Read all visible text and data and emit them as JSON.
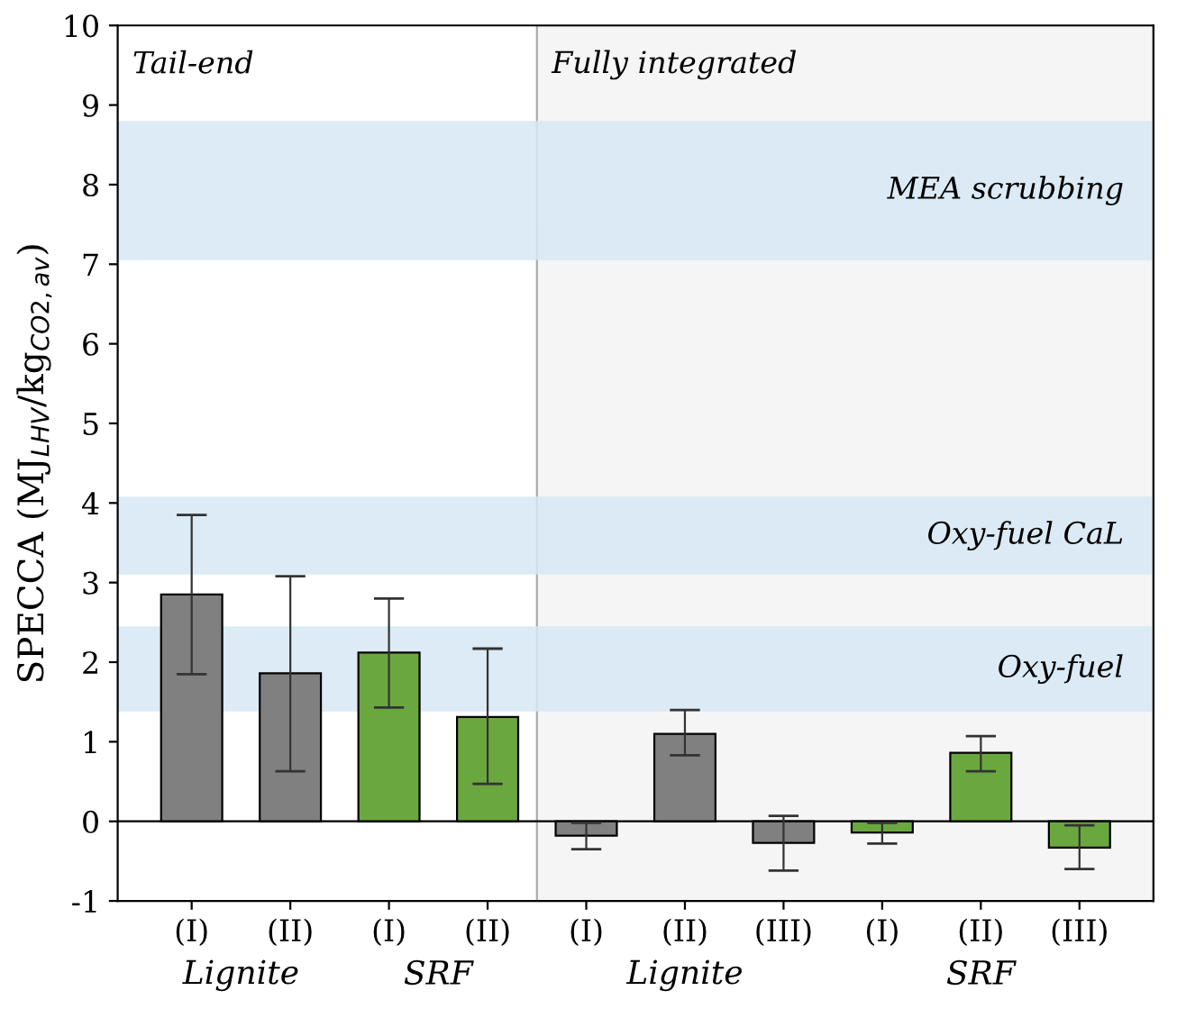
{
  "chart_data": {
    "type": "bar",
    "ylabel": "SPECCA (MJ$_{LHV}$/kg$_{CO2,av}$)",
    "categories": [
      "(I)",
      "(II)",
      "(I)",
      "(II)",
      "(I)",
      "(II)",
      "(III)",
      "(I)",
      "(II)",
      "(III)"
    ],
    "values": [
      2.85,
      1.86,
      2.12,
      1.31,
      -0.18,
      1.1,
      -0.27,
      -0.14,
      0.86,
      -0.33
    ],
    "colors": [
      "#808080",
      "#808080",
      "#6aa83f",
      "#6aa83f",
      "#808080",
      "#808080",
      "#808080",
      "#6aa83f",
      "#6aa83f",
      "#6aa83f"
    ],
    "errors": [
      [
        1.85,
        3.85
      ],
      [
        0.63,
        3.08
      ],
      [
        1.43,
        2.8
      ],
      [
        0.47,
        2.17
      ],
      [
        -0.35,
        -0.02
      ],
      [
        0.83,
        1.4
      ],
      [
        -0.62,
        0.07
      ],
      [
        -0.28,
        -0.02
      ],
      [
        0.63,
        1.07
      ],
      [
        -0.6,
        -0.05
      ]
    ],
    "ylim": [
      -1,
      10
    ],
    "yticks": [
      -1,
      0,
      1,
      2,
      3,
      4,
      5,
      6,
      7,
      8,
      9,
      10
    ],
    "bands": [
      {
        "axis": "y",
        "from": 7.05,
        "to": 8.8,
        "label": "MEA scrubbing",
        "color": "#d6e8f5"
      },
      {
        "axis": "y",
        "from": 3.1,
        "to": 4.08,
        "label": "Oxy-fuel CaL",
        "color": "#d6e8f5"
      },
      {
        "axis": "y",
        "from": 1.38,
        "to": 2.45,
        "label": "Oxy-fuel",
        "color": "#d6e8f5"
      }
    ],
    "annotations": [
      "Tail-end",
      "Fully integrated",
      "Lignite",
      "SRF",
      "Lignite",
      "SRF"
    ],
    "ref_lines": [
      {
        "axis": "y",
        "value": 0,
        "color": "#000000"
      }
    ],
    "grid": false
  }
}
